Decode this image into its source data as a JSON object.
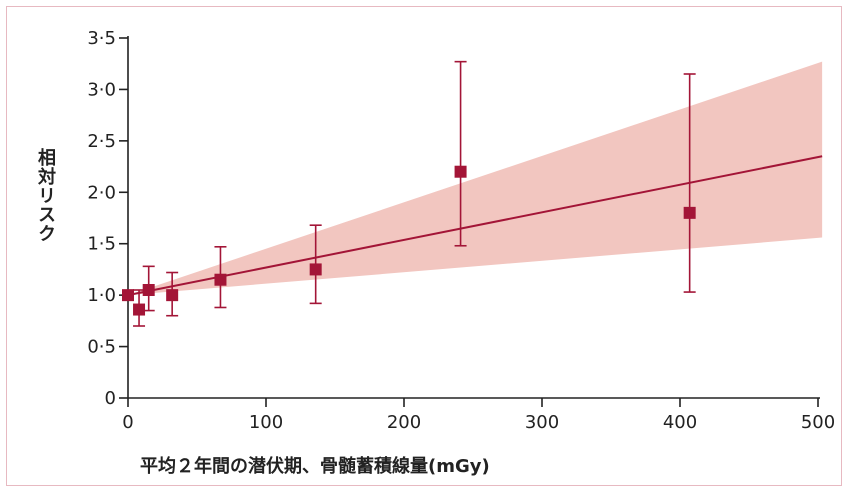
{
  "chart_data": {
    "type": "scatter",
    "xlabel": "平均２年間の潜伏期、骨髄蓄積線量(mGy)",
    "ylabel": "相対リスク",
    "xlim": [
      0,
      500
    ],
    "ylim": [
      0,
      3.5
    ],
    "x_ticks": [
      0,
      100,
      200,
      300,
      400,
      500
    ],
    "y_ticks": [
      0,
      0.5,
      1.0,
      1.5,
      2.0,
      2.5,
      3.0,
      3.5
    ],
    "x_tick_labels": [
      "0",
      "100",
      "200",
      "300",
      "400",
      "500"
    ],
    "y_tick_labels": [
      "0",
      "0·5",
      "1·0",
      "1·5",
      "2·0",
      "2·5",
      "3·0",
      "3·5"
    ],
    "points": [
      {
        "x": 0,
        "y": 1.0,
        "lo": 1.0,
        "hi": 1.0
      },
      {
        "x": 8,
        "y": 0.86,
        "lo": 0.7,
        "hi": 1.05
      },
      {
        "x": 15,
        "y": 1.05,
        "lo": 0.85,
        "hi": 1.28
      },
      {
        "x": 32,
        "y": 1.0,
        "lo": 0.8,
        "hi": 1.22
      },
      {
        "x": 67,
        "y": 1.15,
        "lo": 0.88,
        "hi": 1.47
      },
      {
        "x": 136,
        "y": 1.25,
        "lo": 0.92,
        "hi": 1.68
      },
      {
        "x": 241,
        "y": 2.2,
        "lo": 1.48,
        "hi": 3.27
      },
      {
        "x": 407,
        "y": 1.8,
        "lo": 1.03,
        "hi": 3.15
      }
    ],
    "fit_line": {
      "x": [
        0,
        503
      ],
      "y": [
        1.0,
        2.35
      ]
    },
    "confidence_band": {
      "x": [
        0,
        503
      ],
      "lower": [
        1.0,
        1.56
      ],
      "upper": [
        1.0,
        3.27
      ]
    },
    "grid": false,
    "colors": {
      "marker": "#a31537",
      "line": "#a31537",
      "band": "#f2c6c0",
      "axis": "#222222"
    }
  }
}
